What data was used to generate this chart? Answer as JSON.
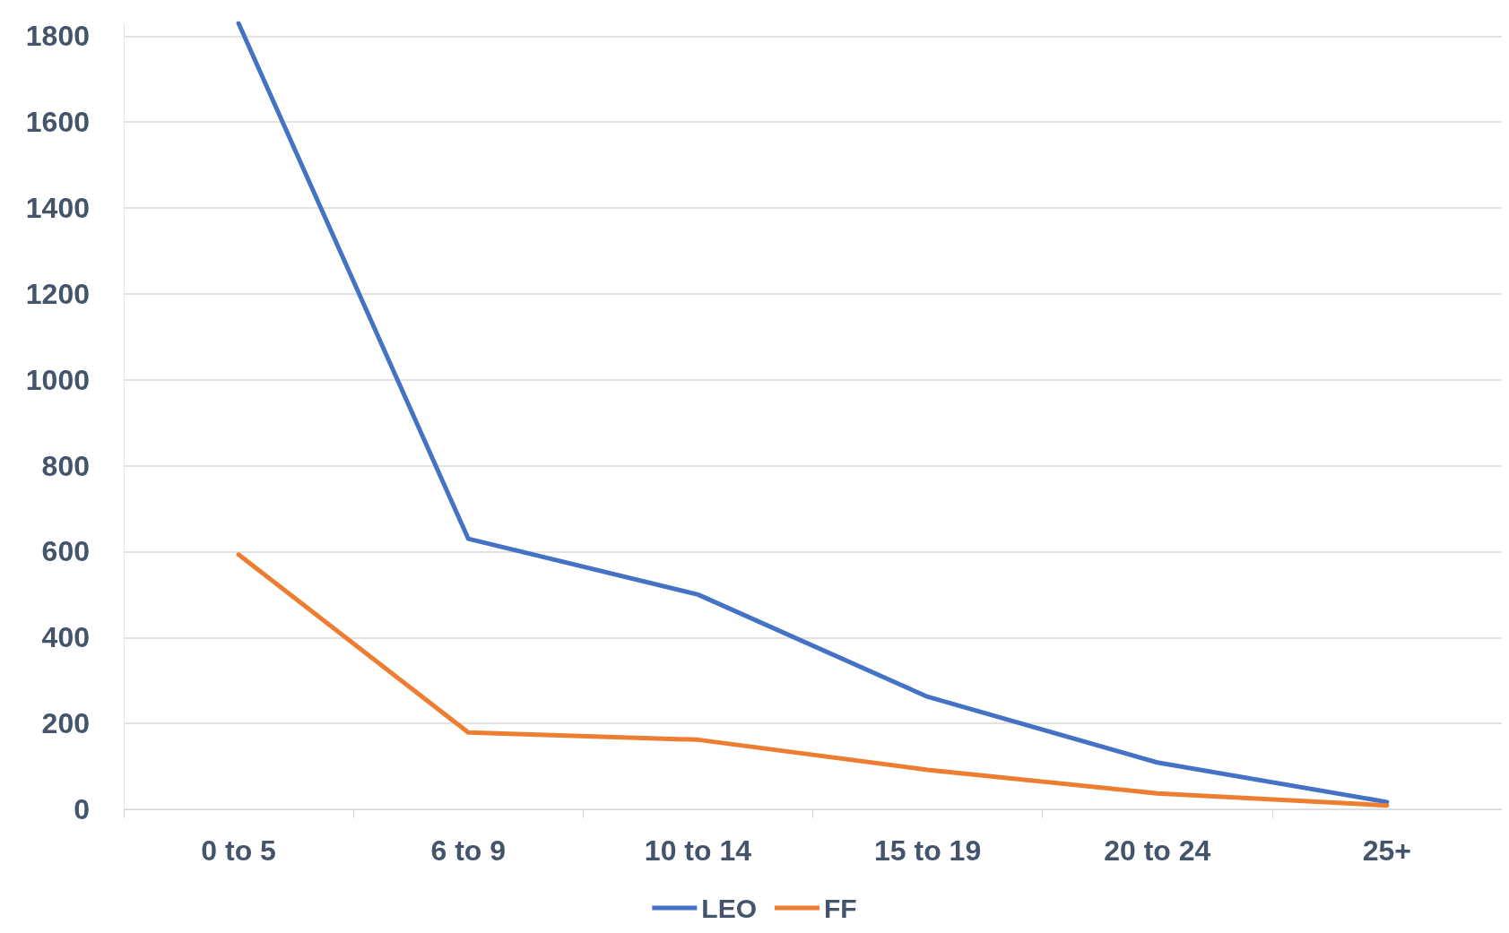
{
  "chart_data": {
    "type": "line",
    "categories": [
      "0 to 5",
      "6 to 9",
      "10 to 14",
      "15 to 19",
      "20 to 24",
      "25+"
    ],
    "series": [
      {
        "name": "LEO",
        "color": "#4472c4",
        "values": [
          1830,
          630,
          500,
          262,
          109,
          17
        ]
      },
      {
        "name": "FF",
        "color": "#ed7d31",
        "values": [
          593,
          179,
          162,
          92,
          37,
          9
        ]
      }
    ],
    "ylim": [
      0,
      1830
    ],
    "yticks": [
      0,
      200,
      400,
      600,
      800,
      1000,
      1200,
      1400,
      1600,
      1800
    ],
    "grid": "y",
    "legend": "bottom",
    "marker": "none",
    "line_style": "solid"
  }
}
